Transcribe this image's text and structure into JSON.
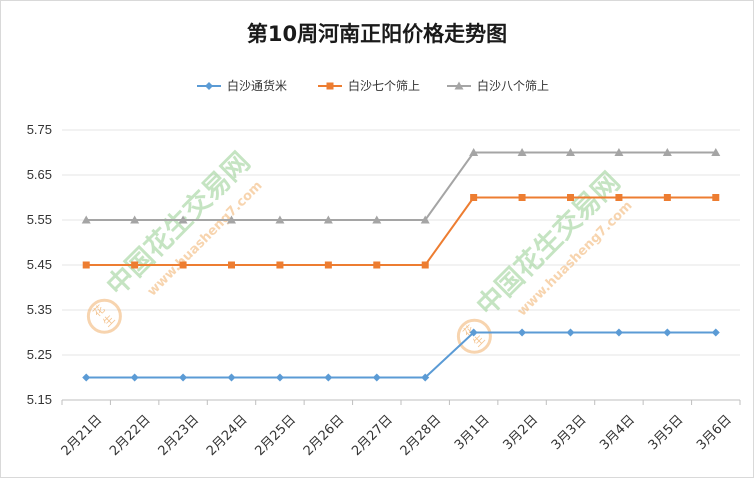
{
  "chart_data": {
    "type": "line",
    "title": "第10周河南正阳价格走势图",
    "categories": [
      "2月21日",
      "2月22日",
      "2月23日",
      "2月24日",
      "2月25日",
      "2月26日",
      "2月27日",
      "2月28日",
      "3月1日",
      "3月2日",
      "3月3日",
      "3月4日",
      "3月5日",
      "3月6日"
    ],
    "series": [
      {
        "name": "白沙通货米",
        "color": "#5b9bd5",
        "marker": "diamond",
        "values": [
          5.2,
          5.2,
          5.2,
          5.2,
          5.2,
          5.2,
          5.2,
          5.2,
          5.3,
          5.3,
          5.3,
          5.3,
          5.3,
          5.3
        ]
      },
      {
        "name": "白沙七个筛上",
        "color": "#ed7d31",
        "marker": "square",
        "values": [
          5.45,
          5.45,
          5.45,
          5.45,
          5.45,
          5.45,
          5.45,
          5.45,
          5.6,
          5.6,
          5.6,
          5.6,
          5.6,
          5.6
        ]
      },
      {
        "name": "白沙八个筛上",
        "color": "#a5a5a5",
        "marker": "triangle",
        "values": [
          5.55,
          5.55,
          5.55,
          5.55,
          5.55,
          5.55,
          5.55,
          5.55,
          5.7,
          5.7,
          5.7,
          5.7,
          5.7,
          5.7
        ]
      }
    ],
    "ylim": [
      5.15,
      5.75
    ],
    "yticks": [
      5.15,
      5.25,
      5.35,
      5.45,
      5.55,
      5.65,
      5.75
    ],
    "ytick_labels": [
      "5.15",
      "5.25",
      "5.35",
      "5.45",
      "5.55",
      "5.65",
      "5.75"
    ],
    "grid": true,
    "legend_position": "top",
    "xlabel": "",
    "ylabel": ""
  },
  "watermark": {
    "text": "中国花生交易网",
    "url": "www.huasheng7.com",
    "logo_char_1": "花",
    "logo_char_2": "生"
  }
}
